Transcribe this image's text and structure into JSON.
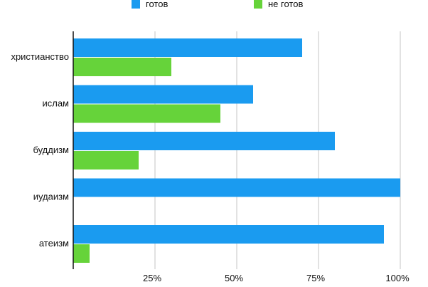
{
  "chart_data": {
    "type": "bar",
    "orientation": "horizontal",
    "categories": [
      "христианство",
      "ислам",
      "буддизм",
      "иудаизм",
      "атеизм"
    ],
    "series": [
      {
        "name": "готов",
        "color": "#1a9bf0",
        "values": [
          70,
          55,
          80,
          100,
          95
        ]
      },
      {
        "name": "не готов",
        "color": "#66d33a",
        "values": [
          30,
          45,
          20,
          0,
          5
        ]
      }
    ],
    "xlim": [
      0,
      100
    ],
    "xticks": [
      25,
      50,
      75,
      100
    ],
    "xtick_labels": [
      "25%",
      "50%",
      "75%",
      "100%"
    ],
    "grid": "vertical",
    "legend_position": "top"
  }
}
